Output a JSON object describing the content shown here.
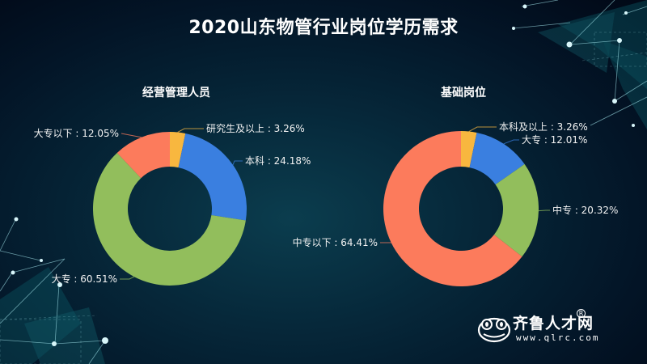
{
  "title": "2020山东物管行业岗位学历需求",
  "colors": {
    "yellow": "#F8B73F",
    "blue": "#3A7FE0",
    "green": "#92BE5C",
    "salmon": "#FC7B5C"
  },
  "chart_data": [
    {
      "type": "pie",
      "variant": "donut",
      "title": "经营管理人员",
      "categories": [
        "研究生及以上",
        "本科",
        "大专",
        "大专以下"
      ],
      "values": [
        3.26,
        24.18,
        60.51,
        12.05
      ],
      "unit": "%",
      "labels": [
        "研究生及以上 : 3.26%",
        "本科 : 24.18%",
        "大专 : 60.51%",
        "大专以下 : 12.05%"
      ],
      "colors": [
        "#F8B73F",
        "#3A7FE0",
        "#92BE5C",
        "#FC7B5C"
      ],
      "start": "top, clockwise",
      "legend": "none (outside labels with leader lines)"
    },
    {
      "type": "pie",
      "variant": "donut",
      "title": "基础岗位",
      "categories": [
        "本科及以上",
        "大专",
        "中专",
        "中专以下"
      ],
      "values": [
        3.26,
        12.01,
        20.32,
        64.41
      ],
      "unit": "%",
      "labels": [
        "本科及以上 : 3.26%",
        "大专 : 12.01%",
        "中专 : 20.32%",
        "中专以下 : 64.41%"
      ],
      "colors": [
        "#F8B73F",
        "#3A7FE0",
        "#92BE5C",
        "#FC7B5C"
      ],
      "start": "top, clockwise",
      "legend": "none (outside labels with leader lines)"
    }
  ],
  "logo": {
    "name": "齐鲁人才网",
    "registered_mark": "R",
    "url": "www.qlrc.com"
  }
}
